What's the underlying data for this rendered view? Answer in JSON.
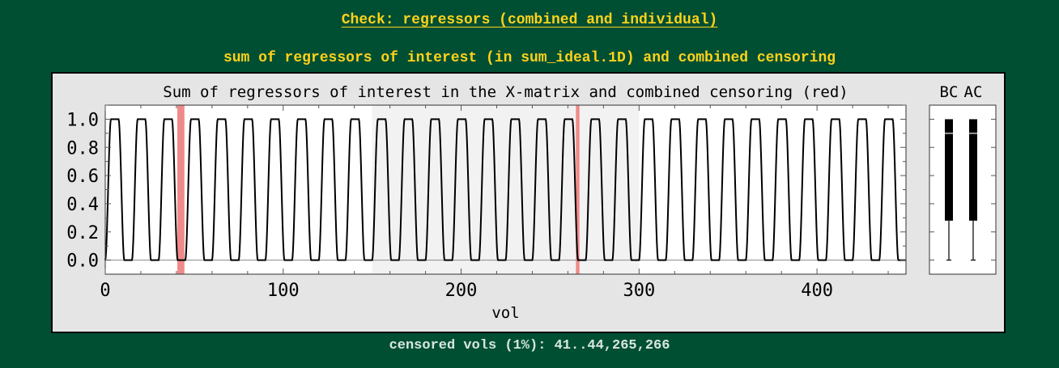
{
  "page": {
    "title": "Check: regressors (combined and individual)",
    "subtitle": "sum of regressors of interest (in sum_ideal.1D) and combined censoring",
    "footer": "censored vols (1%): 41..44,265,266"
  },
  "chart_data": [
    {
      "type": "line",
      "title": "Sum of regressors of interest in the X-matrix and combined censoring (red)",
      "xlabel": "vol",
      "ylabel": "",
      "xlim": [
        0,
        450
      ],
      "ylim": [
        -0.1,
        1.1
      ],
      "xticks": [
        0,
        100,
        200,
        300,
        400
      ],
      "yticks": [
        0.0,
        0.2,
        0.4,
        0.6,
        0.8,
        1.0
      ],
      "ytick_labels": [
        "0.0",
        "0.2",
        "0.4",
        "0.6",
        "0.8",
        "1.0"
      ],
      "run_boundaries": [
        150,
        300
      ],
      "shaded_runs": [
        [
          150,
          300
        ]
      ],
      "censored_intervals": [
        [
          41,
          44
        ],
        [
          265,
          266
        ]
      ],
      "series": [
        {
          "period": 15,
          "min": 0.0,
          "max": 1.0,
          "n_cycles": 30,
          "n_vols": 450
        }
      ],
      "colors": {
        "line": "#000000",
        "censor": "#f08a8a",
        "run_shade": "#f2f2f2",
        "axes_bg": "#ffffff",
        "figure_bg": "#e5e5e5"
      },
      "grid": false
    },
    {
      "type": "boxplot",
      "categories": [
        "BC",
        "AC"
      ],
      "boxes": [
        {
          "name": "BC",
          "min": 0.0,
          "q1": 0.28,
          "median": 0.9,
          "q3": 1.0,
          "max": 1.0
        },
        {
          "name": "AC",
          "min": 0.0,
          "q1": 0.28,
          "median": 0.9,
          "q3": 1.0,
          "max": 1.0
        }
      ]
    }
  ]
}
